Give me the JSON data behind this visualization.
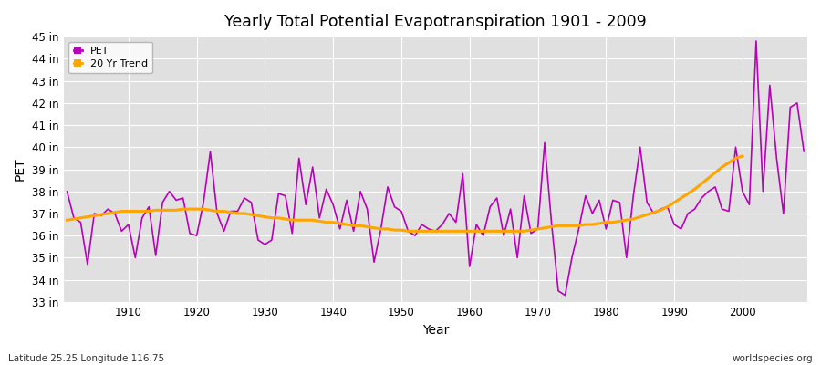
{
  "title": "Yearly Total Potential Evapotranspiration 1901 - 2009",
  "ylabel": "PET",
  "xlabel": "Year",
  "pet_color": "#bb00bb",
  "trend_color": "#FFA500",
  "fig_bg_color": "#ffffff",
  "plot_bg_color": "#e0e0e0",
  "grid_color": "#ffffff",
  "ylim": [
    33,
    45
  ],
  "yticks": [
    33,
    34,
    35,
    36,
    37,
    38,
    39,
    40,
    41,
    42,
    43,
    44,
    45
  ],
  "ytick_labels": [
    "33 in",
    "34 in",
    "35 in",
    "36 in",
    "37 in",
    "38 in",
    "39 in",
    "40 in",
    "41 in",
    "42 in",
    "43 in",
    "44 in",
    "45 in"
  ],
  "start_year": 1901,
  "footer_left": "Latitude 25.25 Longitude 116.75",
  "footer_right": "worldspecies.org",
  "pet_values": [
    38.0,
    36.8,
    36.6,
    34.7,
    37.0,
    36.9,
    37.2,
    37.0,
    36.2,
    36.5,
    35.0,
    36.8,
    37.3,
    35.1,
    37.5,
    38.0,
    37.6,
    37.7,
    36.1,
    36.0,
    37.5,
    39.8,
    37.0,
    36.2,
    37.1,
    37.1,
    37.7,
    37.5,
    35.8,
    35.6,
    35.8,
    37.9,
    37.8,
    36.1,
    39.5,
    37.4,
    39.1,
    36.8,
    38.1,
    37.4,
    36.3,
    37.6,
    36.2,
    38.0,
    37.2,
    34.8,
    36.3,
    38.2,
    37.3,
    37.1,
    36.2,
    36.0,
    36.5,
    36.3,
    36.2,
    36.5,
    37.0,
    36.6,
    38.8,
    34.6,
    36.5,
    36.0,
    37.3,
    37.7,
    36.0,
    37.2,
    35.0,
    37.8,
    36.1,
    36.3,
    40.2,
    36.6,
    33.5,
    33.3,
    35.0,
    36.3,
    37.8,
    37.0,
    37.6,
    36.3,
    37.6,
    37.5,
    35.0,
    37.8,
    40.0,
    37.5,
    37.0,
    37.2,
    37.3,
    36.5,
    36.3,
    37.0,
    37.2,
    37.7,
    38.0,
    38.2,
    37.2,
    37.1,
    40.0,
    38.0,
    37.4,
    44.8,
    38.0,
    42.8,
    39.5,
    37.0,
    41.8,
    42.0,
    39.8
  ],
  "trend_values": [
    36.7,
    36.75,
    36.8,
    36.85,
    36.9,
    36.95,
    37.0,
    37.05,
    37.1,
    37.1,
    37.1,
    37.1,
    37.1,
    37.15,
    37.15,
    37.15,
    37.15,
    37.2,
    37.2,
    37.2,
    37.2,
    37.15,
    37.1,
    37.1,
    37.05,
    37.0,
    37.0,
    36.95,
    36.9,
    36.85,
    36.8,
    36.8,
    36.75,
    36.7,
    36.7,
    36.7,
    36.7,
    36.65,
    36.6,
    36.6,
    36.55,
    36.5,
    36.45,
    36.45,
    36.4,
    36.35,
    36.3,
    36.3,
    36.25,
    36.25,
    36.2,
    36.2,
    36.2,
    36.2,
    36.2,
    36.2,
    36.2,
    36.2,
    36.2,
    36.2,
    36.2,
    36.2,
    36.2,
    36.2,
    36.2,
    36.2,
    36.2,
    36.2,
    36.25,
    36.3,
    36.35,
    36.4,
    36.45,
    36.45,
    36.45,
    36.45,
    36.5,
    36.5,
    36.55,
    36.6,
    36.6,
    36.65,
    36.7,
    36.75,
    36.85,
    36.95,
    37.05,
    37.15,
    37.3,
    37.5,
    37.7,
    37.9,
    38.1,
    38.35,
    38.6,
    38.85,
    39.1,
    39.3,
    39.5,
    39.6
  ]
}
